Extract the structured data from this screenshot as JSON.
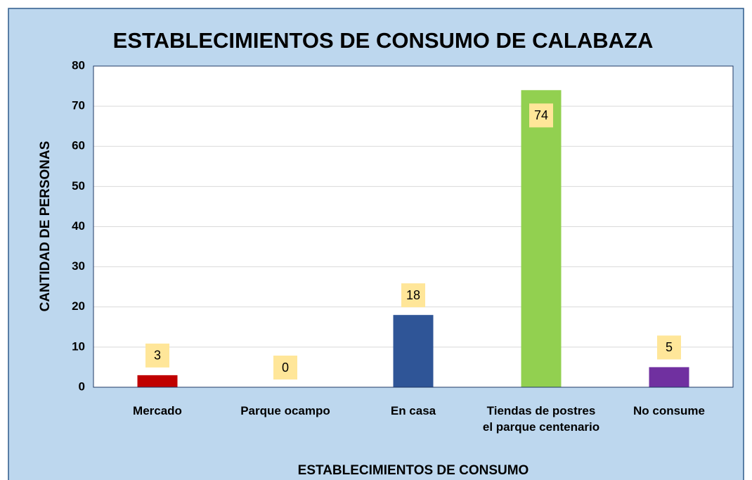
{
  "chart_data": {
    "type": "bar",
    "title": "ESTABLECIMIENTOS DE CONSUMO DE CALABAZA",
    "x_label": "ESTABLECIMIENTOS DE CONSUMO",
    "y_label": "CANTIDAD DE PERSONAS",
    "categories": [
      "Mercado",
      "Parque ocampo",
      "En casa",
      "Tiendas de postres el parque centenario",
      "No consume"
    ],
    "values": [
      3,
      0,
      18,
      74,
      5
    ],
    "colors": [
      "#c00000",
      "#ffc000",
      "#2f5597",
      "#92d050",
      "#7030a0"
    ],
    "ylim": [
      0,
      80
    ],
    "yticks": [
      0,
      10,
      20,
      30,
      40,
      50,
      60,
      70,
      80
    ],
    "grid": true
  }
}
